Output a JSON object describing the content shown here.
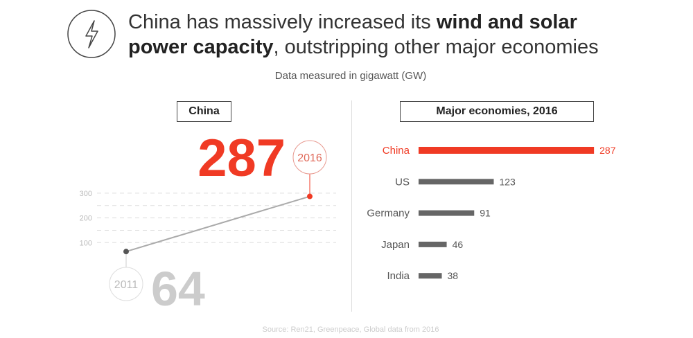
{
  "title": {
    "part1": "China has massively increased its ",
    "bold1": "wind and solar",
    "bold2": "power capacity",
    "part2": ", outstripping other major economies"
  },
  "subtitle": "Data measured in gigawatt (GW)",
  "source": "Source: Ren21, Greenpeace, Global data from 2016",
  "icon": "lightning-bolt-icon",
  "colors": {
    "accent": "#f03a24",
    "gray": "#666666",
    "light": "#cccccc"
  },
  "chart_data": [
    {
      "type": "line",
      "title": "China",
      "x": [
        "2011",
        "2016"
      ],
      "values": [
        64,
        287
      ],
      "big_labels": [
        "64",
        "287"
      ],
      "yticks": [
        "100",
        "200",
        "300"
      ],
      "ylim": [
        0,
        300
      ],
      "grid": true
    },
    {
      "type": "bar",
      "title": "Major economies, 2016",
      "categories": [
        "China",
        "US",
        "Germany",
        "Japan",
        "India"
      ],
      "values": [
        287,
        123,
        91,
        46,
        38
      ],
      "labels": [
        "287",
        "123",
        "91",
        "46",
        "38"
      ],
      "highlight": "China"
    }
  ]
}
